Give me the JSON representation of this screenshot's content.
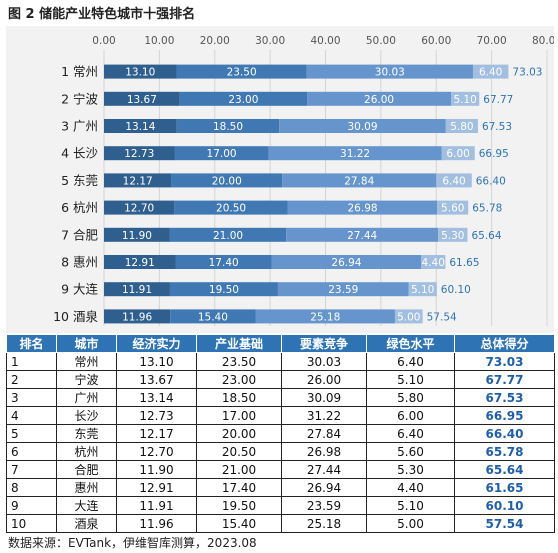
{
  "figure_title": "图 2  储能产业特色城市十强排名",
  "source_note": "数据来源：EVTank，伊维智库测算，2023.08",
  "colors": {
    "economy": "#2e5f8f",
    "industry": "#3f78b3",
    "competition": "#6595cc",
    "green": "#a3bfe0",
    "total_label": "#2e74b5",
    "table_header": "#2e74b5"
  },
  "chart_data": {
    "type": "bar",
    "orientation": "horizontal",
    "stacked": true,
    "title": "",
    "xlim": [
      0,
      80
    ],
    "xticks": [
      "0.00",
      "10.00",
      "20.00",
      "30.00",
      "40.00",
      "50.00",
      "60.00",
      "70.00",
      "80.00"
    ],
    "categories": [
      "1 常州",
      "2 宁波",
      "3 广州",
      "4 长沙",
      "5 东莞",
      "6 杭州",
      "7 合肥",
      "8 惠州",
      "9 大连",
      "10 酒泉"
    ],
    "series": [
      {
        "key": "economy",
        "values": [
          13.1,
          13.67,
          13.14,
          12.73,
          12.17,
          12.7,
          11.9,
          12.91,
          11.91,
          11.96
        ]
      },
      {
        "key": "industry",
        "values": [
          23.5,
          23.0,
          18.5,
          17.0,
          20.0,
          20.5,
          21.0,
          17.4,
          19.5,
          15.4
        ]
      },
      {
        "key": "competition",
        "values": [
          30.03,
          26.0,
          30.09,
          31.22,
          27.84,
          26.98,
          27.44,
          26.94,
          23.59,
          25.18
        ]
      },
      {
        "key": "green",
        "values": [
          6.4,
          5.1,
          5.8,
          6.0,
          6.4,
          5.6,
          5.3,
          4.4,
          5.1,
          5.0
        ]
      }
    ],
    "totals": [
      73.03,
      67.77,
      67.53,
      66.95,
      66.4,
      65.78,
      65.64,
      61.65,
      60.1,
      57.54
    ],
    "value_labels": [
      [
        "13.10",
        "23.50",
        "30.03",
        "6.40"
      ],
      [
        "13.67",
        "23.00",
        "26.00",
        "5.10"
      ],
      [
        "13.14",
        "18.50",
        "30.09",
        "5.80"
      ],
      [
        "12.73",
        "17.00",
        "31.22",
        "6.00"
      ],
      [
        "12.17",
        "20.00",
        "27.84",
        "6.40"
      ],
      [
        "12.70",
        "20.50",
        "26.98",
        "5.60"
      ],
      [
        "11.90",
        "21.00",
        "27.44",
        "5.30"
      ],
      [
        "12.91",
        "17.40",
        "26.94",
        "4.40"
      ],
      [
        "11.91",
        "19.50",
        "23.59",
        "5.10"
      ],
      [
        "11.96",
        "15.40",
        "25.18",
        "5.00"
      ]
    ],
    "total_labels": [
      "73.03",
      "67.77",
      "67.53",
      "66.95",
      "66.40",
      "65.78",
      "65.64",
      "61.65",
      "60.10",
      "57.54"
    ],
    "grid": true,
    "legend": "none"
  },
  "table": {
    "headers": [
      "排名",
      "城市",
      "经济实力",
      "产业基础",
      "要素竞争",
      "绿色水平",
      "总体得分"
    ],
    "rows": [
      [
        "1",
        "常州",
        "13.10",
        "23.50",
        "30.03",
        "6.40",
        "73.03"
      ],
      [
        "2",
        "宁波",
        "13.67",
        "23.00",
        "26.00",
        "5.10",
        "67.77"
      ],
      [
        "3",
        "广州",
        "13.14",
        "18.50",
        "30.09",
        "5.80",
        "67.53"
      ],
      [
        "4",
        "长沙",
        "12.73",
        "17.00",
        "31.22",
        "6.00",
        "66.95"
      ],
      [
        "5",
        "东莞",
        "12.17",
        "20.00",
        "27.84",
        "6.40",
        "66.40"
      ],
      [
        "6",
        "杭州",
        "12.70",
        "20.50",
        "26.98",
        "5.60",
        "65.78"
      ],
      [
        "7",
        "合肥",
        "11.90",
        "21.00",
        "27.44",
        "5.30",
        "65.64"
      ],
      [
        "8",
        "惠州",
        "12.91",
        "17.40",
        "26.94",
        "4.40",
        "61.65"
      ],
      [
        "9",
        "大连",
        "11.91",
        "19.50",
        "23.59",
        "5.10",
        "60.10"
      ],
      [
        "10",
        "酒泉",
        "11.96",
        "15.40",
        "25.18",
        "5.00",
        "57.54"
      ]
    ]
  }
}
